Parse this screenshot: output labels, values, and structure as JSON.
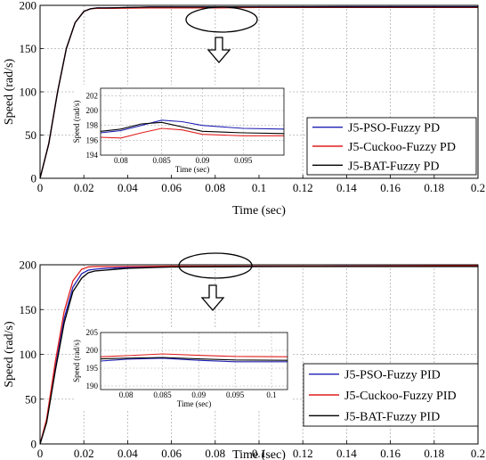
{
  "colors": {
    "pso": "#1f1fb4",
    "cuckoo": "#e01f1f",
    "bat": "#000000",
    "grid": "#b0b0b0"
  },
  "chart_data": [
    {
      "type": "line",
      "xlabel": "Time (sec)",
      "ylabel": "Speed (rad/s)",
      "xlim": [
        0,
        0.2
      ],
      "ylim": [
        0,
        200
      ],
      "xticks": [
        "0",
        "0.02",
        "0.04",
        "0.06",
        "0.08",
        "0.1",
        "0.12",
        "0.14",
        "0.16",
        "0.18",
        "0.2"
      ],
      "yticks": [
        "0",
        "50",
        "100",
        "150",
        "200"
      ],
      "grid": true,
      "legend_position": "lower-right",
      "series": [
        {
          "name": "J5-PSO-Fuzzy PD",
          "color": "#1f1fb4",
          "x": [
            0,
            0.004,
            0.008,
            0.012,
            0.016,
            0.02,
            0.023,
            0.026,
            0.03,
            0.05,
            0.08,
            0.1,
            0.14,
            0.2
          ],
          "y": [
            0,
            40,
            100,
            150,
            180,
            193,
            196,
            197,
            197,
            198,
            198,
            198,
            198.5,
            198.5
          ]
        },
        {
          "name": "J5-Cuckoo-Fuzzy PD",
          "color": "#e01f1f",
          "x": [
            0,
            0.004,
            0.008,
            0.012,
            0.016,
            0.02,
            0.023,
            0.026,
            0.03,
            0.05,
            0.08,
            0.1,
            0.14,
            0.2
          ],
          "y": [
            0,
            40,
            100,
            150,
            180,
            193,
            196,
            196.5,
            196.5,
            197,
            197,
            197.5,
            197.5,
            197.5
          ]
        },
        {
          "name": "J5-BAT-Fuzzy PD",
          "color": "#000000",
          "x": [
            0,
            0.004,
            0.008,
            0.012,
            0.016,
            0.02,
            0.023,
            0.026,
            0.03,
            0.05,
            0.08,
            0.1,
            0.14,
            0.2
          ],
          "y": [
            0,
            40,
            100,
            150,
            180,
            193,
            196,
            197,
            197,
            198,
            198,
            198,
            198,
            198
          ]
        }
      ],
      "inset": {
        "xlabel": "Time (sec)",
        "ylabel": "Speed (rad/s)",
        "xlim": [
          0.0775,
          0.1
        ],
        "ylim": [
          194,
          203
        ],
        "xticks": [
          "0.08",
          "0.085",
          "0.09",
          "0.095"
        ],
        "yticks": [
          "194",
          "196",
          "198",
          "200",
          "202"
        ],
        "series": [
          {
            "name": "J5-PSO-Fuzzy PD",
            "x": [
              0.0775,
              0.08,
              0.0825,
              0.085,
              0.0875,
              0.09,
              0.095,
              0.1
            ],
            "y": [
              197.0,
              197.3,
              198.0,
              198.7,
              198.5,
              198.0,
              197.6,
              197.5
            ]
          },
          {
            "name": "J5-Cuckoo-Fuzzy PD",
            "x": [
              0.0775,
              0.08,
              0.0825,
              0.085,
              0.0875,
              0.09,
              0.095,
              0.1
            ],
            "y": [
              196.4,
              196.3,
              197.0,
              197.6,
              197.4,
              196.8,
              196.6,
              196.6
            ]
          },
          {
            "name": "J5-BAT-Fuzzy PD",
            "x": [
              0.0775,
              0.08,
              0.0825,
              0.085,
              0.0875,
              0.09,
              0.095,
              0.1
            ],
            "y": [
              197.2,
              197.5,
              198.2,
              198.4,
              197.8,
              197.2,
              197.0,
              196.9
            ]
          }
        ]
      }
    },
    {
      "type": "line",
      "xlabel": "Time (sec)",
      "ylabel": "Speed (rad/s)",
      "xlim": [
        0,
        0.2
      ],
      "ylim": [
        0,
        200
      ],
      "xticks": [
        "0",
        "0.02",
        "0.04",
        "0.06",
        "0.08",
        "0.1",
        "0.12",
        "0.14",
        "0.16",
        "0.18",
        "0.2"
      ],
      "yticks": [
        "0",
        "50",
        "100",
        "150",
        "200"
      ],
      "grid": true,
      "legend_position": "lower-right",
      "series": [
        {
          "name": "J5-PSO-Fuzzy PID",
          "color": "#1f1fb4",
          "x": [
            0,
            0.003,
            0.007,
            0.011,
            0.015,
            0.019,
            0.022,
            0.025,
            0.03,
            0.04,
            0.06,
            0.1,
            0.14,
            0.2
          ],
          "y": [
            0,
            25,
            85,
            140,
            175,
            190,
            194,
            195,
            196,
            197,
            198,
            198,
            198.5,
            198.5
          ]
        },
        {
          "name": "J5-Cuckoo-Fuzzy PID",
          "color": "#e01f1f",
          "x": [
            0,
            0.003,
            0.007,
            0.011,
            0.015,
            0.019,
            0.022,
            0.025,
            0.03,
            0.04,
            0.06,
            0.1,
            0.14,
            0.2
          ],
          "y": [
            0,
            28,
            92,
            148,
            182,
            195,
            197.5,
            198,
            198,
            198,
            198.5,
            198.5,
            198.5,
            199
          ]
        },
        {
          "name": "J5-BAT-Fuzzy PID",
          "color": "#000000",
          "x": [
            0,
            0.003,
            0.007,
            0.011,
            0.015,
            0.019,
            0.022,
            0.025,
            0.03,
            0.04,
            0.06,
            0.1,
            0.14,
            0.2
          ],
          "y": [
            0,
            24,
            82,
            135,
            170,
            185,
            191,
            193,
            194,
            196,
            197.5,
            198,
            198,
            198
          ]
        }
      ],
      "inset": {
        "xlabel": "Time (sec)",
        "ylabel": "Speed (rad/s)",
        "xlim": [
          0.0765,
          0.1022
        ],
        "ylim": [
          189,
          205
        ],
        "xticks": [
          "0.08",
          "0.085",
          "0.09",
          "0.095",
          "0.1"
        ],
        "yticks": [
          "190",
          "195",
          "200",
          "205"
        ],
        "series": [
          {
            "name": "J5-PSO-Fuzzy PID",
            "x": [
              0.0765,
              0.08,
              0.085,
              0.09,
              0.095,
              0.1022
            ],
            "y": [
              197.0,
              197.5,
              197.8,
              197.2,
              196.8,
              196.8
            ]
          },
          {
            "name": "J5-Cuckoo-Fuzzy PID",
            "x": [
              0.0765,
              0.08,
              0.085,
              0.09,
              0.095,
              0.1022
            ],
            "y": [
              198.2,
              198.5,
              199.0,
              198.6,
              198.3,
              198.2
            ]
          },
          {
            "name": "J5-BAT-Fuzzy PID",
            "x": [
              0.0765,
              0.08,
              0.085,
              0.09,
              0.095,
              0.1022
            ],
            "y": [
              197.6,
              197.8,
              198.0,
              197.6,
              197.3,
              197.2
            ]
          }
        ]
      }
    }
  ]
}
